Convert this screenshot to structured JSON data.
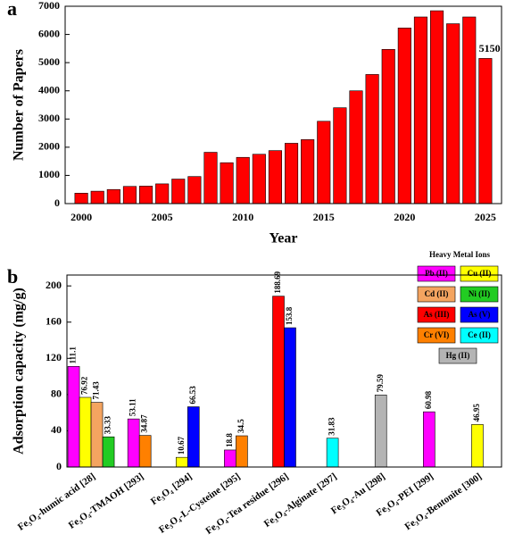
{
  "chart_data": [
    {
      "type": "bar",
      "panel": "a",
      "ylabel": "Number of Papers",
      "xlabel": "Year",
      "color": "#ff0000",
      "x": [
        2000,
        2001,
        2002,
        2003,
        2004,
        2005,
        2006,
        2007,
        2008,
        2009,
        2010,
        2011,
        2012,
        2013,
        2014,
        2015,
        2016,
        2017,
        2018,
        2019,
        2020,
        2021,
        2022,
        2023,
        2024,
        2025
      ],
      "values": [
        370,
        440,
        500,
        610,
        620,
        700,
        870,
        960,
        1820,
        1450,
        1640,
        1750,
        1880,
        2140,
        2270,
        2920,
        3400,
        4000,
        4580,
        5470,
        6230,
        6620,
        6840,
        6380,
        6620,
        5150
      ],
      "value_labels": [
        null,
        null,
        null,
        null,
        null,
        null,
        null,
        null,
        null,
        null,
        null,
        null,
        null,
        null,
        null,
        null,
        null,
        null,
        null,
        null,
        null,
        null,
        null,
        null,
        null,
        "5150"
      ],
      "value_label_color": "#ff0000",
      "xlim": [
        1999,
        2026
      ],
      "xticks": [
        2000,
        2005,
        2010,
        2015,
        2020,
        2025
      ],
      "ylim": [
        0,
        7000
      ],
      "yticks": [
        0,
        1000,
        2000,
        3000,
        4000,
        5000,
        6000,
        7000
      ]
    },
    {
      "type": "bar",
      "panel": "b",
      "ylabel": "Adsorption capacity (mg/g)",
      "categories": [
        "Fe₃O₄-humic acid [28]",
        "Fe₃O₄-TMAOH [293]",
        "Fe₃O₄ [294]",
        "Fe₃O₄-L-Cysteine [295]",
        "Fe₃O₄-Tea residue [296]",
        "Fe₃O₄-Alginate [297]",
        "Fe₃O₄-Au [298]",
        "Fe₃O₄-PEI [299]",
        "Fe₃O₄-Bentonite [300]"
      ],
      "legend_title": "Heavy Metal Ions",
      "legend": "upper right",
      "series": [
        {
          "name": "Pb (II)",
          "color": "#ff00ff",
          "values": [
            111.1,
            53.11,
            null,
            18.8,
            null,
            null,
            null,
            60.98,
            null
          ]
        },
        {
          "name": "Cu (II)",
          "color": "#ffff00",
          "values": [
            76.92,
            null,
            10.67,
            null,
            null,
            null,
            null,
            null,
            46.95
          ]
        },
        {
          "name": "Cd (II)",
          "color": "#f4a460",
          "values": [
            71.43,
            null,
            null,
            null,
            null,
            null,
            null,
            null,
            null
          ]
        },
        {
          "name": "Ni (II)",
          "color": "#22cc22",
          "values": [
            33.33,
            null,
            null,
            null,
            null,
            null,
            null,
            null,
            null
          ]
        },
        {
          "name": "As (III)",
          "color": "#ff0000",
          "values": [
            null,
            null,
            null,
            null,
            188.69,
            null,
            null,
            null,
            null
          ]
        },
        {
          "name": "As (V)",
          "color": "#0000ff",
          "values": [
            null,
            null,
            66.53,
            null,
            153.8,
            null,
            null,
            null,
            null
          ]
        },
        {
          "name": "Cr (VI)",
          "color": "#ff8000",
          "values": [
            null,
            34.87,
            null,
            34.5,
            null,
            null,
            null,
            null,
            null
          ]
        },
        {
          "name": "Ce (II)",
          "color": "#00ffff",
          "values": [
            null,
            null,
            null,
            null,
            null,
            31.83,
            null,
            null,
            null
          ]
        },
        {
          "name": "Hg (II)",
          "color": "#b4b4b4",
          "values": [
            null,
            null,
            null,
            null,
            null,
            null,
            79.59,
            null,
            null
          ]
        }
      ],
      "ylim": [
        0,
        212
      ],
      "yticks": [
        0,
        40,
        80,
        120,
        160,
        200
      ]
    }
  ]
}
